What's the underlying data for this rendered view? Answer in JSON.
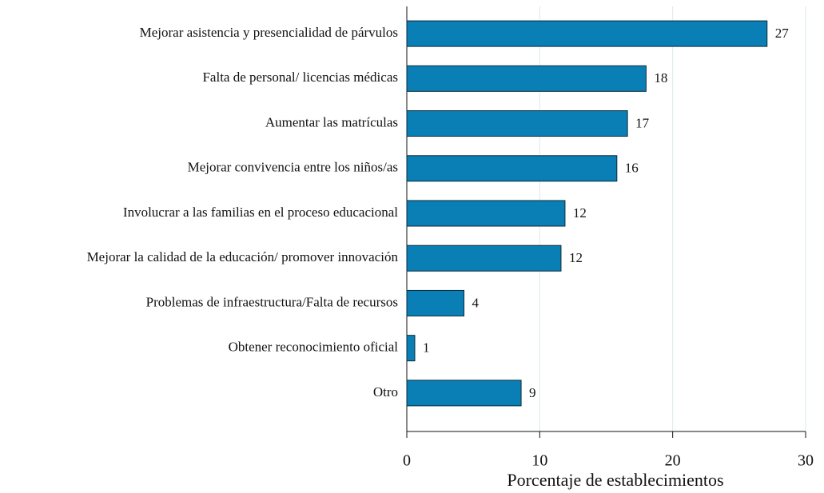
{
  "chart_data": {
    "type": "bar",
    "orientation": "horizontal",
    "xlabel": "Porcentaje de establecimientos",
    "categories": [
      "Mejorar asistencia y presencialidad de párvulos",
      "Falta de personal/ licencias médicas",
      "Aumentar las matrículas",
      "Mejorar convivencia entre los niños/as",
      "Involucrar a las familias en el proceso educacional",
      "Mejorar la calidad de la educación/ promover innovación",
      "Problemas de infraestructura/Falta de recursos",
      "Obtener reconocimiento oficial",
      "Otro"
    ],
    "values": [
      27.1,
      18.0,
      16.6,
      15.8,
      11.9,
      11.6,
      4.3,
      0.6,
      8.6
    ],
    "value_labels": [
      "27",
      "18",
      "17",
      "16",
      "12",
      "12",
      "4",
      "1",
      "9"
    ],
    "color": "#0a7fb5",
    "xlim": [
      0,
      30
    ],
    "xticks": [
      0,
      10,
      20,
      30
    ],
    "grid": true
  }
}
